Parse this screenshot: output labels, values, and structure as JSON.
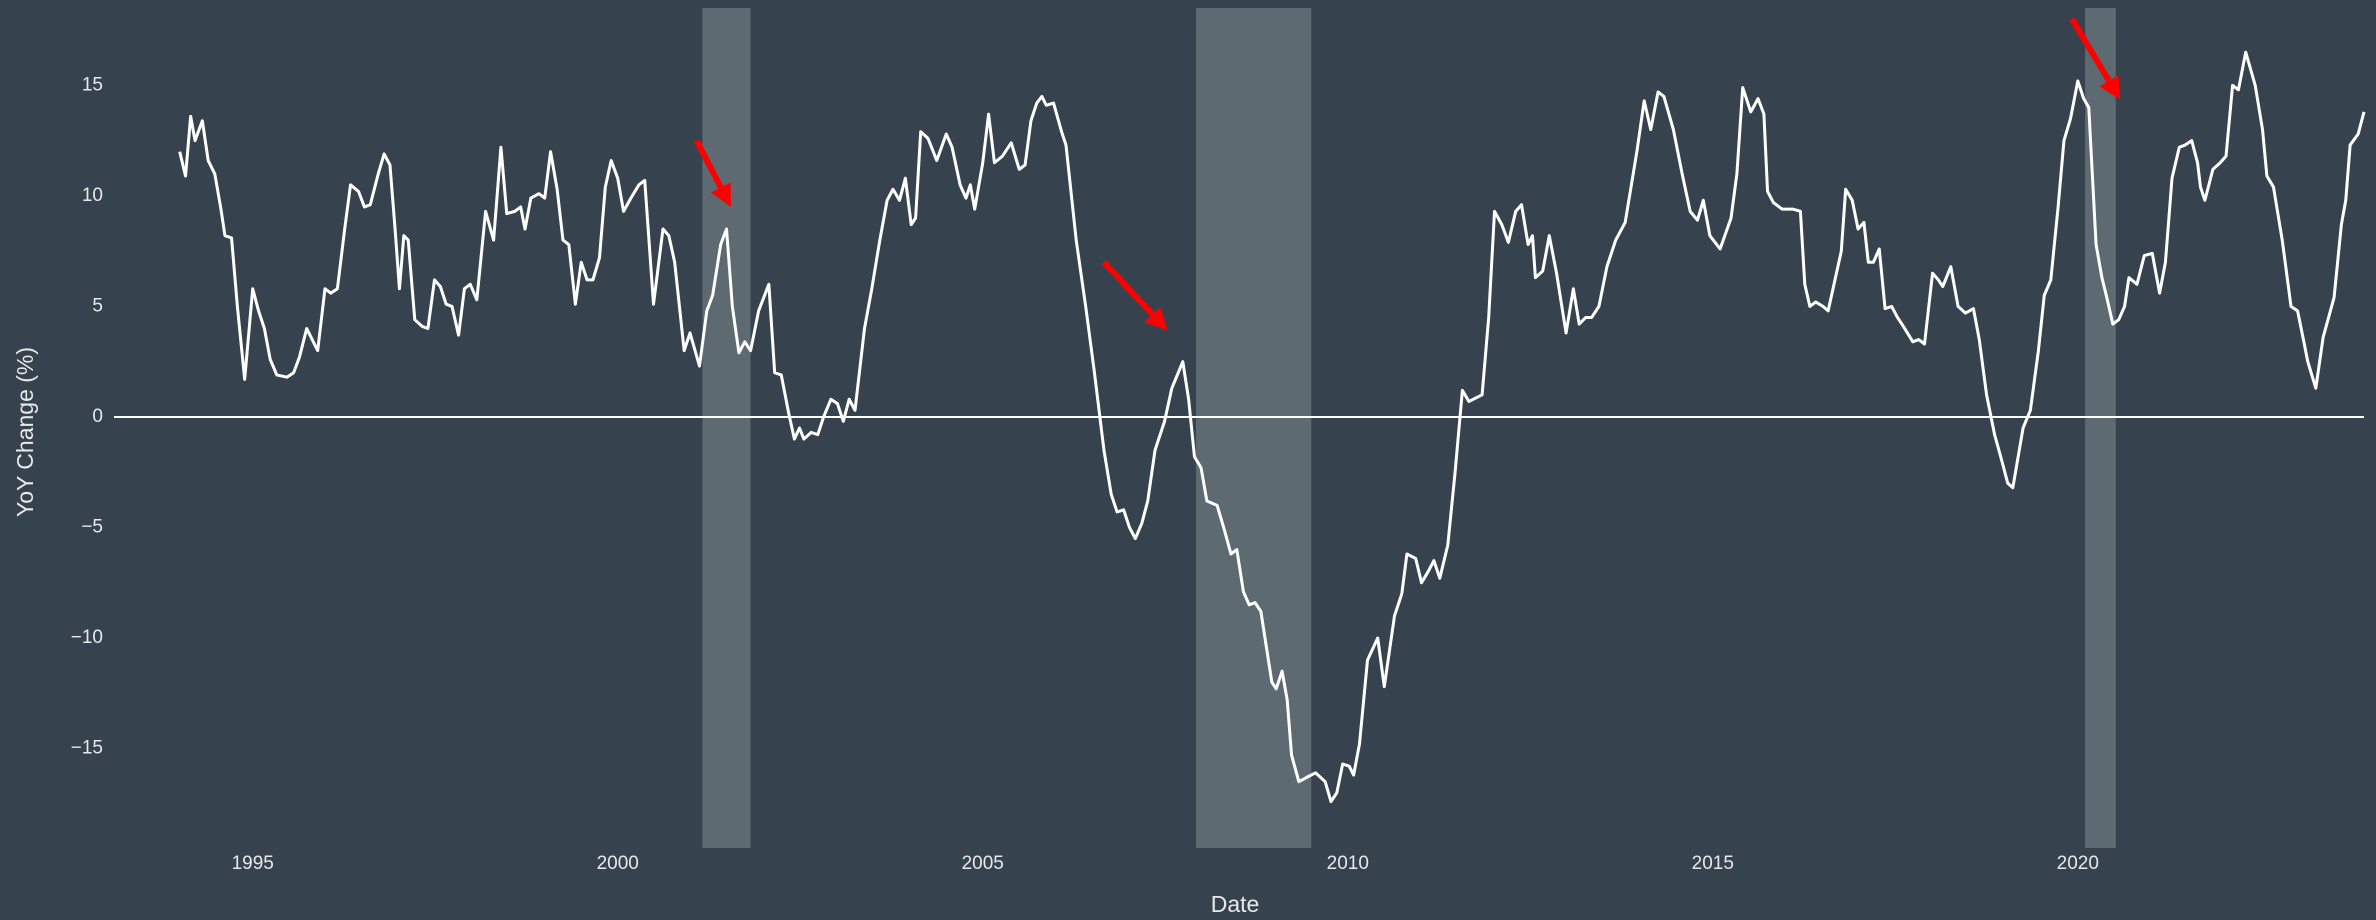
{
  "chart_data": {
    "type": "line",
    "x_label": "Date",
    "y_label": "YoY Change (%)",
    "color": "#ffffff",
    "background": "#36434f",
    "zeroline": true,
    "grid": false,
    "xlim": [
      1993.1,
      2023.92
    ],
    "ylim": [
      -19.5,
      18.5
    ],
    "xticks": [
      1995,
      2000,
      2005,
      2010,
      2015,
      2020
    ],
    "yticks": [
      {
        "value": -15,
        "label": "−15"
      },
      {
        "value": -10,
        "label": "−10"
      },
      {
        "value": -5,
        "label": "−5"
      },
      0,
      5,
      10,
      15
    ],
    "shaded_color": "#5d6a72",
    "shaded_regions": [
      {
        "x0": 2001.16,
        "x1": 2001.82
      },
      {
        "x0": 2007.92,
        "x1": 2009.5
      },
      {
        "x0": 2020.1,
        "x1": 2020.52
      }
    ],
    "arrow_color": "#ff0000",
    "arrows": [
      {
        "x0": 2001.08,
        "y0": 12.5,
        "x": 2001.55,
        "y": 9.5
      },
      {
        "x0": 2006.66,
        "y0": 7.0,
        "x": 2007.53,
        "y": 3.9
      },
      {
        "x0": 2019.92,
        "y0": 18.0,
        "x": 2020.58,
        "y": 14.35
      }
    ],
    "x": [
      1994.0,
      1994.08,
      1994.15,
      1994.21,
      1994.31,
      1994.39,
      1994.48,
      1994.56,
      1994.62,
      1994.71,
      1994.79,
      1994.89,
      1995.0,
      1995.08,
      1995.16,
      1995.24,
      1995.33,
      1995.47,
      1995.56,
      1995.64,
      1995.74,
      1995.89,
      1995.99,
      1996.07,
      1996.16,
      1996.26,
      1996.34,
      1996.45,
      1996.53,
      1996.61,
      1996.72,
      1996.8,
      1996.88,
      1996.95,
      1997.01,
      1997.07,
      1997.13,
      1997.22,
      1997.32,
      1997.4,
      1997.49,
      1997.57,
      1997.65,
      1997.73,
      1997.82,
      1997.9,
      1997.98,
      1998.07,
      1998.19,
      1998.3,
      1998.4,
      1998.48,
      1998.59,
      1998.67,
      1998.73,
      1998.81,
      1998.92,
      1999.0,
      1999.08,
      1999.17,
      1999.25,
      1999.33,
      1999.42,
      1999.5,
      1999.58,
      1999.66,
      1999.75,
      1999.83,
      1999.91,
      2000.0,
      2000.08,
      2000.18,
      2000.29,
      2000.37,
      2000.49,
      2000.62,
      2000.7,
      2000.78,
      2000.91,
      2000.99,
      2001.12,
      2001.22,
      2001.3,
      2001.41,
      2001.49,
      2001.57,
      2001.66,
      2001.74,
      2001.82,
      2001.93,
      2002.07,
      2002.15,
      2002.24,
      2002.34,
      2002.42,
      2002.49,
      2002.55,
      2002.65,
      2002.74,
      2002.82,
      2002.92,
      2003.01,
      2003.09,
      2003.17,
      2003.25,
      2003.38,
      2003.48,
      2003.59,
      2003.69,
      2003.77,
      2003.86,
      2003.94,
      2004.02,
      2004.08,
      2004.15,
      2004.25,
      2004.37,
      2004.5,
      2004.58,
      2004.69,
      2004.77,
      2004.83,
      2004.89,
      2005.0,
      2005.08,
      2005.16,
      2005.27,
      2005.39,
      2005.5,
      2005.58,
      2005.66,
      2005.74,
      2005.81,
      2005.87,
      2005.97,
      2006.08,
      2006.14,
      2006.28,
      2006.41,
      2006.53,
      2006.66,
      2006.76,
      2006.84,
      2006.93,
      2007.01,
      2007.09,
      2007.18,
      2007.26,
      2007.36,
      2007.49,
      2007.59,
      2007.74,
      2007.82,
      2007.9,
      2007.99,
      2008.07,
      2008.21,
      2008.3,
      2008.4,
      2008.48,
      2008.57,
      2008.65,
      2008.73,
      2008.81,
      2008.88,
      2008.96,
      2009.02,
      2009.1,
      2009.17,
      2009.23,
      2009.33,
      2009.44,
      2009.56,
      2009.69,
      2009.77,
      2009.85,
      2009.93,
      2010.02,
      2010.08,
      2010.16,
      2010.27,
      2010.41,
      2010.5,
      2010.64,
      2010.74,
      2010.81,
      2010.93,
      2011.01,
      2011.1,
      2011.18,
      2011.26,
      2011.37,
      2011.47,
      2011.57,
      2011.66,
      2011.84,
      2011.93,
      2012.01,
      2012.11,
      2012.2,
      2012.3,
      2012.38,
      2012.47,
      2012.53,
      2012.57,
      2012.67,
      2012.76,
      2012.86,
      2012.99,
      2013.09,
      2013.17,
      2013.26,
      2013.34,
      2013.44,
      2013.55,
      2013.67,
      2013.8,
      2013.96,
      2014.06,
      2014.15,
      2014.25,
      2014.33,
      2014.46,
      2014.58,
      2014.69,
      2014.79,
      2014.87,
      2014.96,
      2015.1,
      2015.25,
      2015.33,
      2015.41,
      2015.52,
      2015.62,
      2015.7,
      2015.75,
      2015.83,
      2015.95,
      2016.1,
      2016.2,
      2016.26,
      2016.33,
      2016.41,
      2016.51,
      2016.58,
      2016.66,
      2016.76,
      2016.82,
      2016.91,
      2016.99,
      2017.07,
      2017.13,
      2017.2,
      2017.28,
      2017.36,
      2017.45,
      2017.53,
      2017.61,
      2017.74,
      2017.82,
      2017.9,
      2018.01,
      2018.09,
      2018.15,
      2018.26,
      2018.36,
      2018.46,
      2018.57,
      2018.65,
      2018.75,
      2018.86,
      2018.96,
      2019.04,
      2019.11,
      2019.25,
      2019.35,
      2019.46,
      2019.54,
      2019.63,
      2019.73,
      2019.81,
      2019.9,
      2020.0,
      2020.08,
      2020.15,
      2020.25,
      2020.33,
      2020.39,
      2020.48,
      2020.56,
      2020.64,
      2020.7,
      2020.81,
      2020.91,
      2021.02,
      2021.12,
      2021.2,
      2021.29,
      2021.39,
      2021.47,
      2021.56,
      2021.64,
      2021.68,
      2021.74,
      2021.85,
      2021.95,
      2022.03,
      2022.12,
      2022.2,
      2022.3,
      2022.43,
      2022.53,
      2022.59,
      2022.68,
      2022.8,
      2022.92,
      2023.01,
      2023.09,
      2023.15,
      2023.26,
      2023.36,
      2023.51,
      2023.61,
      2023.67,
      2023.73,
      2023.84,
      2023.92
    ],
    "values": [
      12.0,
      10.9,
      13.6,
      12.5,
      13.4,
      11.6,
      11.0,
      9.5,
      8.2,
      8.1,
      5.0,
      1.7,
      5.8,
      4.8,
      4.0,
      2.6,
      1.9,
      1.8,
      2.0,
      2.7,
      4.0,
      3.0,
      5.8,
      5.6,
      5.8,
      8.5,
      10.5,
      10.2,
      9.5,
      9.6,
      11.0,
      11.9,
      11.4,
      8.5,
      5.8,
      8.2,
      8.0,
      4.4,
      4.1,
      4.0,
      6.2,
      5.9,
      5.1,
      5.0,
      3.7,
      5.8,
      6.0,
      5.3,
      9.3,
      8.0,
      12.2,
      9.2,
      9.3,
      9.5,
      8.5,
      9.9,
      10.1,
      9.9,
      12.0,
      10.3,
      8.0,
      7.8,
      5.1,
      7.0,
      6.2,
      6.2,
      7.2,
      10.4,
      11.6,
      10.8,
      9.3,
      9.9,
      10.5,
      10.7,
      5.1,
      8.5,
      8.2,
      7.0,
      3.0,
      3.8,
      2.3,
      4.8,
      5.5,
      7.8,
      8.5,
      5.0,
      2.9,
      3.4,
      3.0,
      4.8,
      6.0,
      2.0,
      1.9,
      0.2,
      -1.0,
      -0.5,
      -1.0,
      -0.7,
      -0.8,
      0.0,
      0.8,
      0.6,
      -0.2,
      0.8,
      0.3,
      4.0,
      5.8,
      8.0,
      9.8,
      10.3,
      9.8,
      10.8,
      8.7,
      9.0,
      12.9,
      12.6,
      11.6,
      12.8,
      12.2,
      10.5,
      9.9,
      10.5,
      9.4,
      11.5,
      13.7,
      11.5,
      11.8,
      12.4,
      11.2,
      11.4,
      13.4,
      14.2,
      14.5,
      14.1,
      14.2,
      12.9,
      12.3,
      8.0,
      5.0,
      2.0,
      -1.5,
      -3.5,
      -4.3,
      -4.2,
      -5.0,
      -5.5,
      -4.8,
      -3.8,
      -1.5,
      -0.2,
      1.3,
      2.5,
      0.8,
      -1.8,
      -2.3,
      -3.8,
      -4.0,
      -5.0,
      -6.2,
      -6.0,
      -7.9,
      -8.5,
      -8.4,
      -8.8,
      -10.3,
      -12.0,
      -12.3,
      -11.5,
      -12.8,
      -15.3,
      -16.5,
      -16.3,
      -16.1,
      -16.5,
      -17.4,
      -17.0,
      -15.7,
      -15.8,
      -16.2,
      -14.8,
      -11.0,
      -10.0,
      -12.2,
      -9.0,
      -8.0,
      -6.2,
      -6.4,
      -7.5,
      -7.0,
      -6.5,
      -7.3,
      -5.8,
      -2.5,
      1.2,
      0.7,
      1.0,
      4.5,
      9.3,
      8.7,
      7.9,
      9.3,
      9.6,
      7.8,
      8.2,
      6.3,
      6.6,
      8.2,
      6.5,
      3.8,
      5.8,
      4.2,
      4.5,
      4.5,
      5.0,
      6.8,
      8.0,
      8.8,
      12.0,
      14.3,
      13.0,
      14.7,
      14.5,
      13.0,
      11.0,
      9.3,
      8.9,
      9.8,
      8.2,
      7.6,
      9.0,
      11.0,
      14.9,
      13.8,
      14.4,
      13.7,
      10.2,
      9.7,
      9.4,
      9.4,
      9.3,
      6.0,
      5.0,
      5.2,
      5.0,
      4.8,
      6.0,
      7.5,
      10.3,
      9.8,
      8.5,
      8.8,
      7.0,
      7.0,
      7.6,
      4.9,
      5.0,
      4.5,
      4.1,
      3.4,
      3.5,
      3.3,
      6.5,
      6.2,
      5.9,
      6.8,
      5.0,
      4.7,
      4.9,
      3.5,
      1.0,
      -0.8,
      -2.0,
      -3.0,
      -3.2,
      -0.5,
      0.3,
      3.0,
      5.5,
      6.2,
      9.5,
      12.5,
      13.5,
      15.2,
      14.4,
      14.0,
      7.8,
      6.3,
      5.5,
      4.2,
      4.4,
      5.0,
      6.3,
      6.0,
      7.3,
      7.4,
      5.6,
      7.0,
      10.8,
      12.2,
      12.3,
      12.5,
      11.5,
      10.4,
      9.8,
      11.2,
      11.5,
      11.8,
      15.0,
      14.8,
      16.5,
      15.0,
      13.0,
      10.9,
      10.4,
      8.0,
      5.0,
      4.8,
      3.5,
      2.5,
      1.3,
      3.6,
      5.4,
      8.7,
      9.8,
      12.3,
      12.8,
      13.8
    ]
  }
}
